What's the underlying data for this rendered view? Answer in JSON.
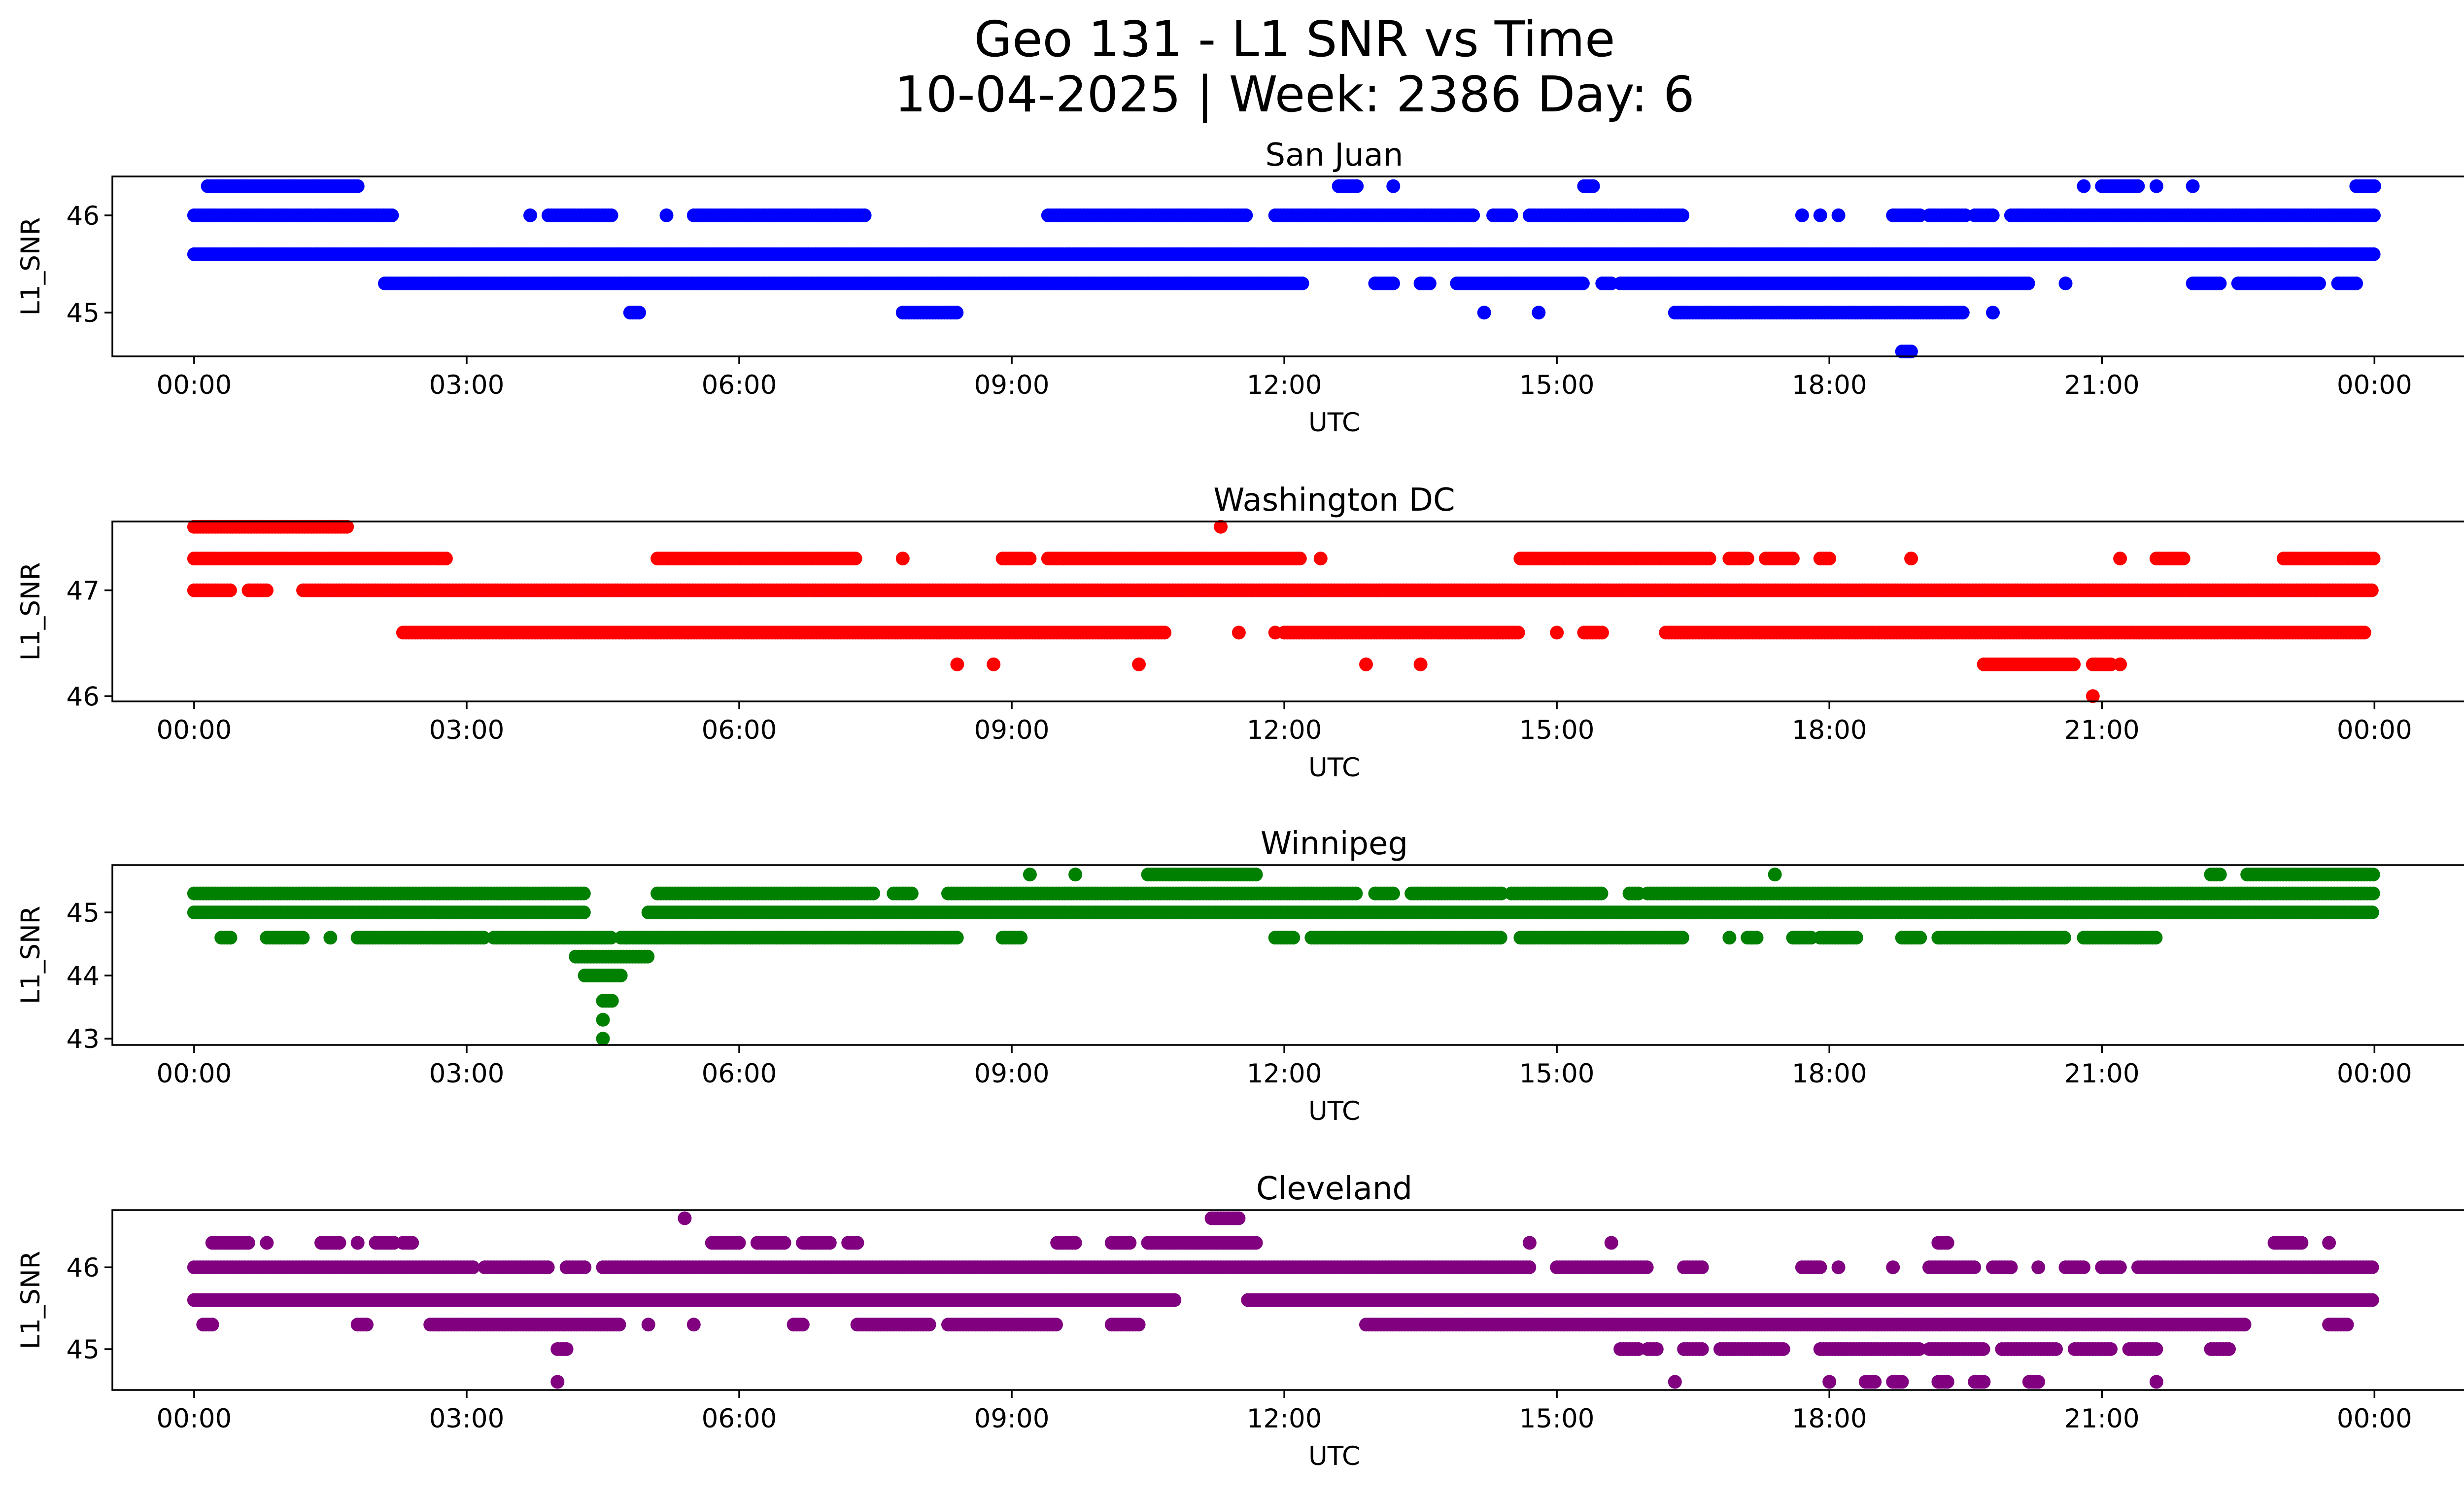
{
  "figure": {
    "title_line1": "Geo 131 - L1 SNR vs Time",
    "title_line2": "10-04-2025 | Week: 2386 Day: 6"
  },
  "chart_data": [
    {
      "type": "scatter",
      "title": "San Juan",
      "xlabel": "UTC",
      "ylabel": "L1_SNR",
      "color": "#0000ff",
      "xlim": [
        -0.9,
        26.0
      ],
      "ylim": [
        44.55,
        46.4
      ],
      "xticks": [
        0,
        3,
        6,
        9,
        12,
        15,
        18,
        21,
        24
      ],
      "xtick_labels": [
        "00:00",
        "03:00",
        "06:00",
        "09:00",
        "12:00",
        "15:00",
        "18:00",
        "21:00",
        "00:00"
      ],
      "yticks": [
        45,
        46
      ],
      "ytick_labels": [
        "45",
        "46"
      ],
      "levels": [
        {
          "y": 46.3,
          "segments": [
            [
              0.15,
              1.8
            ],
            [
              12.6,
              12.8
            ],
            [
              13.2,
              13.2
            ],
            [
              15.3,
              15.4
            ],
            [
              20.8,
              20.8
            ],
            [
              21.0,
              21.4
            ],
            [
              21.6,
              21.6
            ],
            [
              22.0,
              22.0
            ],
            [
              23.8,
              24.0
            ]
          ]
        },
        {
          "y": 46.0,
          "segments": [
            [
              0.0,
              2.2
            ],
            [
              3.7,
              3.7
            ],
            [
              3.9,
              4.6
            ],
            [
              5.2,
              5.2
            ],
            [
              5.5,
              7.4
            ],
            [
              9.4,
              11.6
            ],
            [
              11.9,
              14.1
            ],
            [
              14.3,
              14.5
            ],
            [
              14.7,
              16.4
            ],
            [
              17.7,
              17.7
            ],
            [
              17.9,
              17.9
            ],
            [
              18.1,
              18.1
            ],
            [
              18.7,
              19.0
            ],
            [
              19.1,
              19.5
            ],
            [
              19.6,
              19.8
            ],
            [
              20.0,
              24.0
            ]
          ]
        },
        {
          "y": 45.6,
          "segments": [
            [
              0.0,
              24.0
            ]
          ]
        },
        {
          "y": 45.3,
          "segments": [
            [
              2.1,
              12.2
            ],
            [
              13.0,
              13.2
            ],
            [
              13.5,
              13.6
            ],
            [
              13.9,
              15.3
            ],
            [
              15.5,
              15.6
            ],
            [
              15.7,
              20.2
            ],
            [
              20.6,
              20.6
            ],
            [
              22.0,
              22.3
            ],
            [
              22.5,
              23.4
            ],
            [
              23.6,
              23.8
            ]
          ]
        },
        {
          "y": 45.0,
          "segments": [
            [
              4.8,
              4.9
            ],
            [
              7.8,
              8.4
            ],
            [
              14.2,
              14.2
            ],
            [
              14.8,
              14.8
            ],
            [
              16.3,
              19.5
            ],
            [
              19.8,
              19.8
            ]
          ]
        },
        {
          "y": 44.6,
          "segments": [
            [
              18.8,
              18.9
            ]
          ]
        }
      ]
    },
    {
      "type": "scatter",
      "title": "Washington DC",
      "xlabel": "UTC",
      "ylabel": "L1_SNR",
      "color": "#ff0000",
      "xlim": [
        -0.9,
        26.0
      ],
      "ylim": [
        45.95,
        47.65
      ],
      "xticks": [
        0,
        3,
        6,
        9,
        12,
        15,
        18,
        21,
        24
      ],
      "xtick_labels": [
        "00:00",
        "03:00",
        "06:00",
        "09:00",
        "12:00",
        "15:00",
        "18:00",
        "21:00",
        "00:00"
      ],
      "yticks": [
        46,
        47
      ],
      "ytick_labels": [
        "46",
        "47"
      ],
      "levels": [
        {
          "y": 47.6,
          "segments": [
            [
              0.0,
              1.7
            ],
            [
              11.3,
              11.3
            ]
          ]
        },
        {
          "y": 47.3,
          "segments": [
            [
              0.0,
              2.8
            ],
            [
              5.1,
              7.3
            ],
            [
              7.8,
              7.8
            ],
            [
              8.9,
              9.2
            ],
            [
              9.4,
              12.2
            ],
            [
              12.4,
              12.4
            ],
            [
              14.6,
              16.7
            ],
            [
              16.9,
              17.1
            ],
            [
              17.3,
              17.6
            ],
            [
              17.9,
              18.0
            ],
            [
              18.9,
              18.9
            ],
            [
              21.2,
              21.2
            ],
            [
              21.6,
              21.9
            ],
            [
              23.0,
              24.0
            ]
          ]
        },
        {
          "y": 47.0,
          "segments": [
            [
              0.0,
              0.4
            ],
            [
              0.6,
              0.8
            ],
            [
              1.2,
              24.0
            ]
          ]
        },
        {
          "y": 46.6,
          "segments": [
            [
              2.3,
              10.7
            ],
            [
              11.5,
              11.5
            ],
            [
              11.9,
              11.9
            ],
            [
              12.0,
              14.6
            ],
            [
              15.0,
              15.0
            ],
            [
              15.3,
              15.5
            ],
            [
              16.2,
              23.9
            ]
          ]
        },
        {
          "y": 46.3,
          "segments": [
            [
              8.4,
              8.4
            ],
            [
              8.8,
              8.8
            ],
            [
              10.4,
              10.4
            ],
            [
              12.9,
              12.9
            ],
            [
              13.5,
              13.5
            ],
            [
              19.7,
              20.7
            ],
            [
              20.9,
              21.1
            ],
            [
              21.2,
              21.2
            ]
          ]
        },
        {
          "y": 46.0,
          "segments": [
            [
              20.9,
              20.9
            ]
          ]
        }
      ]
    },
    {
      "type": "scatter",
      "title": "Winnipeg",
      "xlabel": "UTC",
      "ylabel": "L1_SNR",
      "color": "#008000",
      "xlim": [
        -0.9,
        26.0
      ],
      "ylim": [
        42.9,
        45.75
      ],
      "xticks": [
        0,
        3,
        6,
        9,
        12,
        15,
        18,
        21,
        24
      ],
      "xtick_labels": [
        "00:00",
        "03:00",
        "06:00",
        "09:00",
        "12:00",
        "15:00",
        "18:00",
        "21:00",
        "00:00"
      ],
      "yticks": [
        43,
        44,
        45
      ],
      "ytick_labels": [
        "43",
        "44",
        "45"
      ],
      "levels": [
        {
          "y": 45.6,
          "segments": [
            [
              9.2,
              9.2
            ],
            [
              9.7,
              9.7
            ],
            [
              10.5,
              11.7
            ],
            [
              17.4,
              17.4
            ],
            [
              22.2,
              22.3
            ],
            [
              22.6,
              24.0
            ]
          ]
        },
        {
          "y": 45.3,
          "segments": [
            [
              0.0,
              4.3
            ],
            [
              5.1,
              7.5
            ],
            [
              7.7,
              7.9
            ],
            [
              8.3,
              12.8
            ],
            [
              13.0,
              13.2
            ],
            [
              13.4,
              14.4
            ],
            [
              14.5,
              15.5
            ],
            [
              15.8,
              15.9
            ],
            [
              16.0,
              24.0
            ]
          ]
        },
        {
          "y": 45.0,
          "segments": [
            [
              0.0,
              4.3
            ],
            [
              5.0,
              24.0
            ]
          ]
        },
        {
          "y": 44.6,
          "segments": [
            [
              0.3,
              0.4
            ],
            [
              0.8,
              1.2
            ],
            [
              1.5,
              1.5
            ],
            [
              1.8,
              3.2
            ],
            [
              3.3,
              4.6
            ],
            [
              4.7,
              8.4
            ],
            [
              8.9,
              9.1
            ],
            [
              11.9,
              12.1
            ],
            [
              12.3,
              14.4
            ],
            [
              14.6,
              16.4
            ],
            [
              16.9,
              16.9
            ],
            [
              17.1,
              17.2
            ],
            [
              17.6,
              17.8
            ],
            [
              17.9,
              18.3
            ],
            [
              18.8,
              19.0
            ],
            [
              19.2,
              20.6
            ],
            [
              20.8,
              21.6
            ]
          ]
        },
        {
          "y": 44.3,
          "segments": [
            [
              4.2,
              5.0
            ]
          ]
        },
        {
          "y": 44.0,
          "segments": [
            [
              4.3,
              4.7
            ]
          ]
        },
        {
          "y": 43.6,
          "segments": [
            [
              4.5,
              4.6
            ]
          ]
        },
        {
          "y": 43.3,
          "segments": [
            [
              4.5,
              4.5
            ]
          ]
        },
        {
          "y": 43.0,
          "segments": [
            [
              4.5,
              4.5
            ]
          ]
        }
      ]
    },
    {
      "type": "scatter",
      "title": "Cleveland",
      "xlabel": "UTC",
      "ylabel": "L1_SNR",
      "color": "#800080",
      "xlim": [
        -0.9,
        26.0
      ],
      "ylim": [
        44.5,
        46.7
      ],
      "xticks": [
        0,
        3,
        6,
        9,
        12,
        15,
        18,
        21,
        24
      ],
      "xtick_labels": [
        "00:00",
        "03:00",
        "06:00",
        "09:00",
        "12:00",
        "15:00",
        "18:00",
        "21:00",
        "00:00"
      ],
      "yticks": [
        45,
        46
      ],
      "ytick_labels": [
        "45",
        "46"
      ],
      "levels": [
        {
          "y": 46.6,
          "segments": [
            [
              5.4,
              5.4
            ],
            [
              11.2,
              11.5
            ]
          ]
        },
        {
          "y": 46.3,
          "segments": [
            [
              0.2,
              0.6
            ],
            [
              0.8,
              0.8
            ],
            [
              1.4,
              1.6
            ],
            [
              1.8,
              1.8
            ],
            [
              2.0,
              2.2
            ],
            [
              2.3,
              2.4
            ],
            [
              5.7,
              6.0
            ],
            [
              6.2,
              6.5
            ],
            [
              6.7,
              7.0
            ],
            [
              7.2,
              7.3
            ],
            [
              9.5,
              9.7
            ],
            [
              10.1,
              10.3
            ],
            [
              10.5,
              11.7
            ],
            [
              14.7,
              14.7
            ],
            [
              15.6,
              15.6
            ],
            [
              19.2,
              19.3
            ],
            [
              22.9,
              23.2
            ],
            [
              23.5,
              23.5
            ]
          ]
        },
        {
          "y": 46.0,
          "segments": [
            [
              0.0,
              3.1
            ],
            [
              3.2,
              3.9
            ],
            [
              4.1,
              4.3
            ],
            [
              4.5,
              14.7
            ],
            [
              15.0,
              16.0
            ],
            [
              16.4,
              16.6
            ],
            [
              17.7,
              17.9
            ],
            [
              18.1,
              18.1
            ],
            [
              18.7,
              18.7
            ],
            [
              19.1,
              19.6
            ],
            [
              19.8,
              20.0
            ],
            [
              20.3,
              20.3
            ],
            [
              20.6,
              20.8
            ],
            [
              21.0,
              21.2
            ],
            [
              21.4,
              24.0
            ]
          ]
        },
        {
          "y": 45.6,
          "segments": [
            [
              0.0,
              10.8
            ],
            [
              11.6,
              24.0
            ]
          ]
        },
        {
          "y": 45.3,
          "segments": [
            [
              0.1,
              0.2
            ],
            [
              1.8,
              1.9
            ],
            [
              2.6,
              4.7
            ],
            [
              5.0,
              5.0
            ],
            [
              5.5,
              5.5
            ],
            [
              6.6,
              6.7
            ],
            [
              7.3,
              8.1
            ],
            [
              8.3,
              9.5
            ],
            [
              10.1,
              10.4
            ],
            [
              12.9,
              22.6
            ],
            [
              23.5,
              23.7
            ]
          ]
        },
        {
          "y": 45.0,
          "segments": [
            [
              4.0,
              4.1
            ],
            [
              15.7,
              15.9
            ],
            [
              16.0,
              16.1
            ],
            [
              16.4,
              16.6
            ],
            [
              16.8,
              17.5
            ],
            [
              17.9,
              19.0
            ],
            [
              19.1,
              19.7
            ],
            [
              19.9,
              20.5
            ],
            [
              20.7,
              21.1
            ],
            [
              21.3,
              21.6
            ],
            [
              22.2,
              22.4
            ]
          ]
        },
        {
          "y": 44.6,
          "segments": [
            [
              4.0,
              4.0
            ],
            [
              16.3,
              16.3
            ],
            [
              18.0,
              18.0
            ],
            [
              18.4,
              18.5
            ],
            [
              18.7,
              18.8
            ],
            [
              19.2,
              19.3
            ],
            [
              19.6,
              19.7
            ],
            [
              20.2,
              20.3
            ],
            [
              21.6,
              21.6
            ]
          ]
        }
      ]
    }
  ]
}
